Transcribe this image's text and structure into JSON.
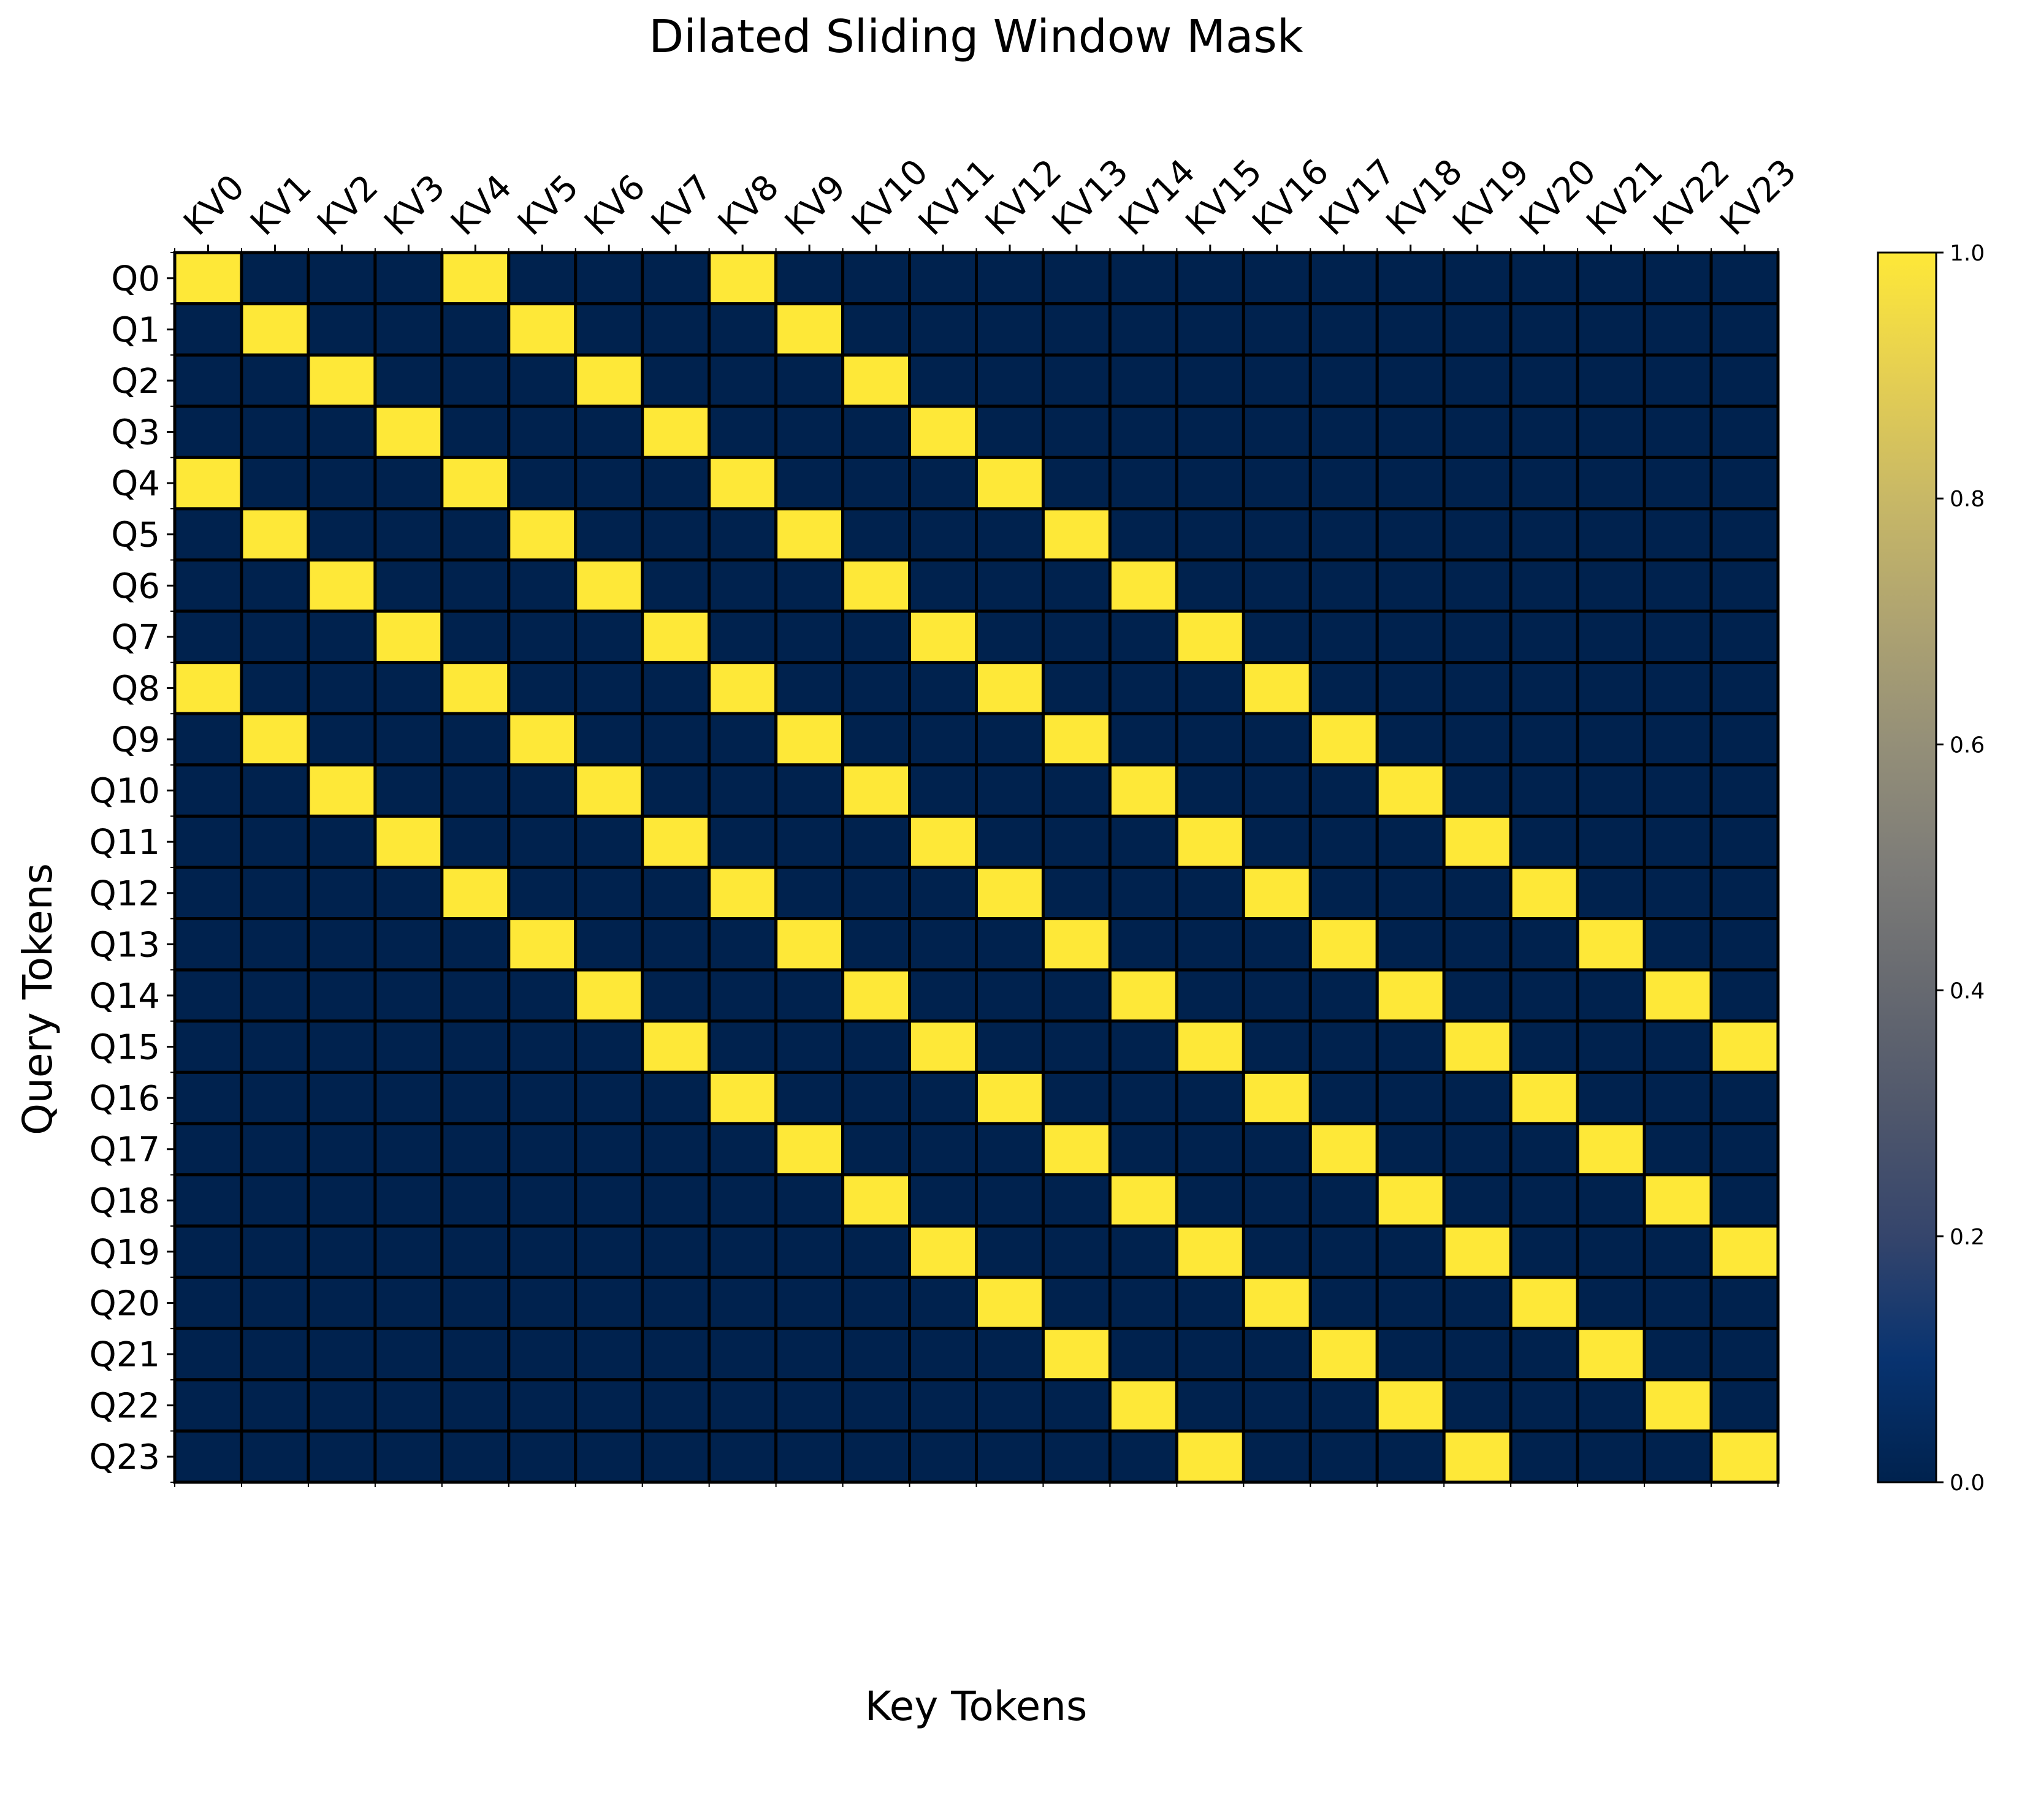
{
  "chart_data": {
    "type": "heatmap",
    "title": "Dilated Sliding Window Mask",
    "xlabel": "Key Tokens",
    "ylabel": "Query Tokens",
    "x_categories": [
      "KV0",
      "KV1",
      "KV2",
      "KV3",
      "KV4",
      "KV5",
      "KV6",
      "KV7",
      "KV8",
      "KV9",
      "KV10",
      "KV11",
      "KV12",
      "KV13",
      "KV14",
      "KV15",
      "KV16",
      "KV17",
      "KV18",
      "KV19",
      "KV20",
      "KV21",
      "KV22",
      "KV23"
    ],
    "y_categories": [
      "Q0",
      "Q1",
      "Q2",
      "Q3",
      "Q4",
      "Q5",
      "Q6",
      "Q7",
      "Q8",
      "Q9",
      "Q10",
      "Q11",
      "Q12",
      "Q13",
      "Q14",
      "Q15",
      "Q16",
      "Q17",
      "Q18",
      "Q19",
      "Q20",
      "Q21",
      "Q22",
      "Q23"
    ],
    "values": [
      [
        1,
        0,
        0,
        0,
        1,
        0,
        0,
        0,
        1,
        0,
        0,
        0,
        0,
        0,
        0,
        0,
        0,
        0,
        0,
        0,
        0,
        0,
        0,
        0
      ],
      [
        0,
        1,
        0,
        0,
        0,
        1,
        0,
        0,
        0,
        1,
        0,
        0,
        0,
        0,
        0,
        0,
        0,
        0,
        0,
        0,
        0,
        0,
        0,
        0
      ],
      [
        0,
        0,
        1,
        0,
        0,
        0,
        1,
        0,
        0,
        0,
        1,
        0,
        0,
        0,
        0,
        0,
        0,
        0,
        0,
        0,
        0,
        0,
        0,
        0
      ],
      [
        0,
        0,
        0,
        1,
        0,
        0,
        0,
        1,
        0,
        0,
        0,
        1,
        0,
        0,
        0,
        0,
        0,
        0,
        0,
        0,
        0,
        0,
        0,
        0
      ],
      [
        1,
        0,
        0,
        0,
        1,
        0,
        0,
        0,
        1,
        0,
        0,
        0,
        1,
        0,
        0,
        0,
        0,
        0,
        0,
        0,
        0,
        0,
        0,
        0
      ],
      [
        0,
        1,
        0,
        0,
        0,
        1,
        0,
        0,
        0,
        1,
        0,
        0,
        0,
        1,
        0,
        0,
        0,
        0,
        0,
        0,
        0,
        0,
        0,
        0
      ],
      [
        0,
        0,
        1,
        0,
        0,
        0,
        1,
        0,
        0,
        0,
        1,
        0,
        0,
        0,
        1,
        0,
        0,
        0,
        0,
        0,
        0,
        0,
        0,
        0
      ],
      [
        0,
        0,
        0,
        1,
        0,
        0,
        0,
        1,
        0,
        0,
        0,
        1,
        0,
        0,
        0,
        1,
        0,
        0,
        0,
        0,
        0,
        0,
        0,
        0
      ],
      [
        1,
        0,
        0,
        0,
        1,
        0,
        0,
        0,
        1,
        0,
        0,
        0,
        1,
        0,
        0,
        0,
        1,
        0,
        0,
        0,
        0,
        0,
        0,
        0
      ],
      [
        0,
        1,
        0,
        0,
        0,
        1,
        0,
        0,
        0,
        1,
        0,
        0,
        0,
        1,
        0,
        0,
        0,
        1,
        0,
        0,
        0,
        0,
        0,
        0
      ],
      [
        0,
        0,
        1,
        0,
        0,
        0,
        1,
        0,
        0,
        0,
        1,
        0,
        0,
        0,
        1,
        0,
        0,
        0,
        1,
        0,
        0,
        0,
        0,
        0
      ],
      [
        0,
        0,
        0,
        1,
        0,
        0,
        0,
        1,
        0,
        0,
        0,
        1,
        0,
        0,
        0,
        1,
        0,
        0,
        0,
        1,
        0,
        0,
        0,
        0
      ],
      [
        0,
        0,
        0,
        0,
        1,
        0,
        0,
        0,
        1,
        0,
        0,
        0,
        1,
        0,
        0,
        0,
        1,
        0,
        0,
        0,
        1,
        0,
        0,
        0
      ],
      [
        0,
        0,
        0,
        0,
        0,
        1,
        0,
        0,
        0,
        1,
        0,
        0,
        0,
        1,
        0,
        0,
        0,
        1,
        0,
        0,
        0,
        1,
        0,
        0
      ],
      [
        0,
        0,
        0,
        0,
        0,
        0,
        1,
        0,
        0,
        0,
        1,
        0,
        0,
        0,
        1,
        0,
        0,
        0,
        1,
        0,
        0,
        0,
        1,
        0
      ],
      [
        0,
        0,
        0,
        0,
        0,
        0,
        0,
        1,
        0,
        0,
        0,
        1,
        0,
        0,
        0,
        1,
        0,
        0,
        0,
        1,
        0,
        0,
        0,
        1
      ],
      [
        0,
        0,
        0,
        0,
        0,
        0,
        0,
        0,
        1,
        0,
        0,
        0,
        1,
        0,
        0,
        0,
        1,
        0,
        0,
        0,
        1,
        0,
        0,
        0
      ],
      [
        0,
        0,
        0,
        0,
        0,
        0,
        0,
        0,
        0,
        1,
        0,
        0,
        0,
        1,
        0,
        0,
        0,
        1,
        0,
        0,
        0,
        1,
        0,
        0
      ],
      [
        0,
        0,
        0,
        0,
        0,
        0,
        0,
        0,
        0,
        0,
        1,
        0,
        0,
        0,
        1,
        0,
        0,
        0,
        1,
        0,
        0,
        0,
        1,
        0
      ],
      [
        0,
        0,
        0,
        0,
        0,
        0,
        0,
        0,
        0,
        0,
        0,
        1,
        0,
        0,
        0,
        1,
        0,
        0,
        0,
        1,
        0,
        0,
        0,
        1
      ],
      [
        0,
        0,
        0,
        0,
        0,
        0,
        0,
        0,
        0,
        0,
        0,
        0,
        1,
        0,
        0,
        0,
        1,
        0,
        0,
        0,
        1,
        0,
        0,
        0
      ],
      [
        0,
        0,
        0,
        0,
        0,
        0,
        0,
        0,
        0,
        0,
        0,
        0,
        0,
        1,
        0,
        0,
        0,
        1,
        0,
        0,
        0,
        1,
        0,
        0
      ],
      [
        0,
        0,
        0,
        0,
        0,
        0,
        0,
        0,
        0,
        0,
        0,
        0,
        0,
        0,
        1,
        0,
        0,
        0,
        1,
        0,
        0,
        0,
        1,
        0
      ],
      [
        0,
        0,
        0,
        0,
        0,
        0,
        0,
        0,
        0,
        0,
        0,
        0,
        0,
        0,
        0,
        1,
        0,
        0,
        0,
        1,
        0,
        0,
        0,
        1
      ]
    ],
    "colormap": "cividis",
    "color_low": "#00224e",
    "color_high": "#fee838",
    "cell_edge_color": "#000000",
    "vmin": 0,
    "vmax": 1,
    "colorbar": {
      "ticks": [
        0.0,
        0.2,
        0.4,
        0.6,
        0.8,
        1.0
      ],
      "tick_labels": [
        "0.0",
        "0.2",
        "0.4",
        "0.6",
        "0.8",
        "1.0"
      ]
    }
  }
}
